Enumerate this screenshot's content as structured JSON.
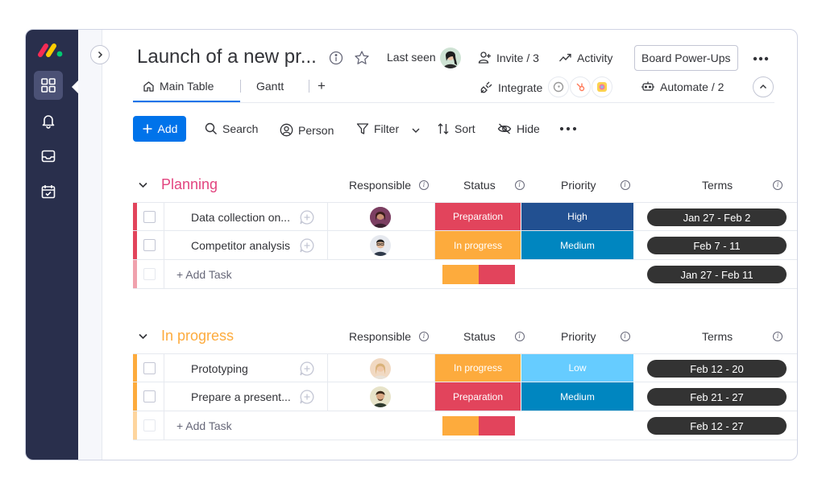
{
  "header": {
    "title": "Launch of a new pr...",
    "last_seen_label": "Last seen",
    "invite_label": "Invite / 3",
    "activity_label": "Activity",
    "power_ups_label": "Board Power-Ups",
    "integrate_label": "Integrate",
    "automate_label": "Automate / 2"
  },
  "tabs": [
    {
      "label": "Main Table",
      "active": true
    },
    {
      "label": "Gantt",
      "active": false
    }
  ],
  "toolbar": {
    "add_label": "Add",
    "search_label": "Search",
    "person_label": "Person",
    "filter_label": "Filter",
    "sort_label": "Sort",
    "hide_label": "Hide"
  },
  "columns": {
    "responsible": "Responsible",
    "status": "Status",
    "priority": "Priority",
    "terms": "Terms"
  },
  "groups": [
    {
      "title": "Planning",
      "color": "#e2445c",
      "title_color": "#e2447f",
      "tasks": [
        {
          "name": "Data collection on...",
          "status": "Preparation",
          "status_color": "#e2445c",
          "priority": "High",
          "priority_color": "#225091",
          "terms": "Jan 27 - Feb 2"
        },
        {
          "name": "Competitor analysis",
          "status": "In progress",
          "status_color": "#fdab3d",
          "priority": "Medium",
          "priority_color": "#0086c0",
          "terms": "Feb 7 - 11"
        }
      ],
      "add_task_label": "+ Add Task",
      "summary_terms": "Jan 27 - Feb 11"
    },
    {
      "title": "In progress",
      "color": "#fdab3d",
      "title_color": "#fdab3d",
      "tasks": [
        {
          "name": "Prototyping",
          "status": "In progress",
          "status_color": "#fdab3d",
          "priority": "Low",
          "priority_color": "#66ccff",
          "terms": "Feb 12 - 20"
        },
        {
          "name": "Prepare a present...",
          "status": "Preparation",
          "status_color": "#e2445c",
          "priority": "Medium",
          "priority_color": "#0086c0",
          "terms": "Feb 21 - 27"
        }
      ],
      "add_task_label": "+ Add Task",
      "summary_terms": "Feb 12 - 27"
    }
  ],
  "colors": {
    "nav_bg": "#292f4c",
    "accent": "#0073ea"
  }
}
